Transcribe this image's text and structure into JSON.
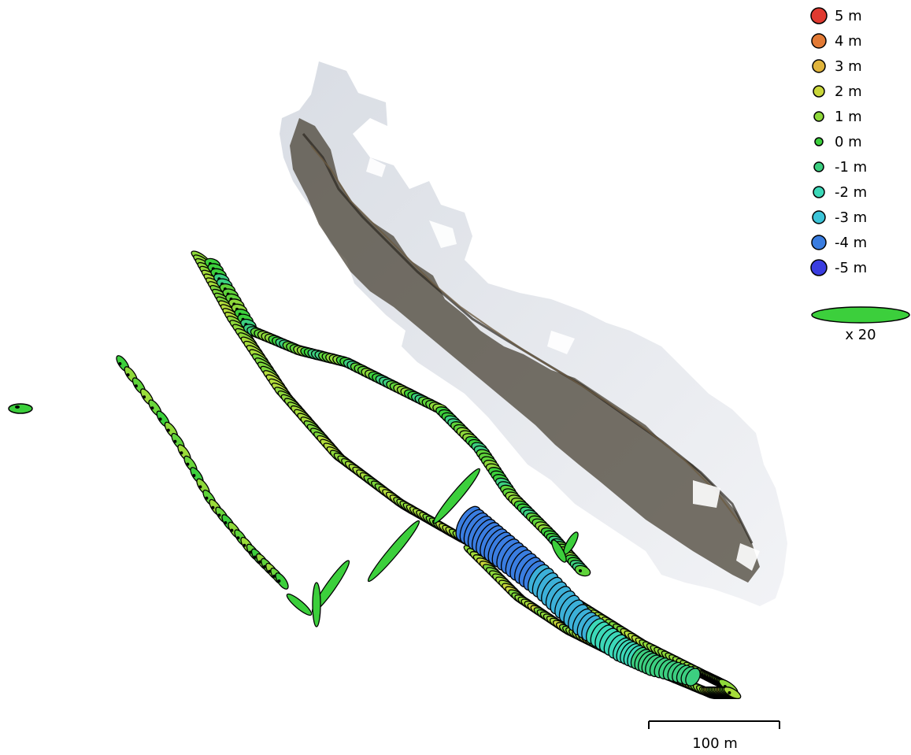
{
  "legend": {
    "items": [
      {
        "label": "5 m",
        "color": "#e03a30"
      },
      {
        "label": "4 m",
        "color": "#e27a35"
      },
      {
        "label": "3 m",
        "color": "#e0b43c"
      },
      {
        "label": "2 m",
        "color": "#c9d63a"
      },
      {
        "label": "1 m",
        "color": "#8ed83a"
      },
      {
        "label": "0 m",
        "color": "#3ccf3c"
      },
      {
        "label": "-1 m",
        "color": "#3ccf80"
      },
      {
        "label": "-2 m",
        "color": "#3cd8b8"
      },
      {
        "label": "-3 m",
        "color": "#3cc4d8"
      },
      {
        "label": "-4 m",
        "color": "#3a7de0"
      },
      {
        "label": "-5 m",
        "color": "#3a3de0"
      }
    ],
    "ellipse_scale_label": "x 20",
    "ellipse_color": "#3ccf3c"
  },
  "scale_bar": {
    "label": "100 m"
  },
  "colors": {
    "snow": "#eef0f3",
    "rock_dark": "#3c3a34",
    "rock_brown": "#6b5b42",
    "outline": "#000000"
  }
}
